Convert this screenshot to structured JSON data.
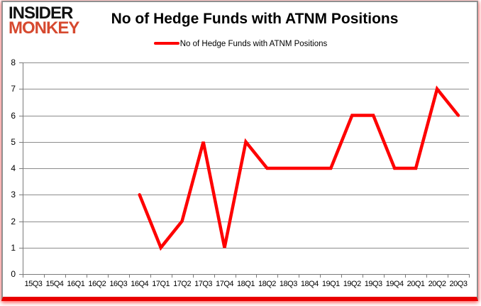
{
  "logo": {
    "line1": "INSIDER",
    "line2": "MONKEY"
  },
  "header": {
    "title": "No of Hedge Funds with ATNM Positions"
  },
  "legend": {
    "label": "No of Hedge Funds with ATNM Positions"
  },
  "colors": {
    "line": "#fe0000",
    "grid": "#8c8c8c",
    "axis": "#7a7a7a",
    "logo_red": "#d6492f",
    "frame_border": "#8f8f8f",
    "bottom_bar": "#e90000"
  },
  "chart_data": {
    "type": "line",
    "title": "No of Hedge Funds with ATNM Positions",
    "categories": [
      "15Q3",
      "15Q4",
      "16Q1",
      "16Q2",
      "16Q3",
      "16Q4",
      "17Q1",
      "17Q2",
      "17Q3",
      "17Q4",
      "18Q1",
      "18Q2",
      "18Q3",
      "18Q4",
      "19Q1",
      "19Q2",
      "19Q3",
      "19Q4",
      "20Q1",
      "20Q2",
      "20Q3"
    ],
    "series": [
      {
        "name": "No of Hedge Funds with ATNM Positions",
        "values": [
          null,
          null,
          null,
          null,
          null,
          3,
          1,
          2,
          5,
          1,
          5,
          4,
          4,
          4,
          4,
          6,
          6,
          4,
          4,
          7,
          6
        ]
      }
    ],
    "xlabel": "",
    "ylabel": "",
    "ylim": [
      0,
      8
    ],
    "y_ticks": [
      0,
      1,
      2,
      3,
      4,
      5,
      6,
      7,
      8
    ],
    "grid": true,
    "legend_position": "top-center"
  }
}
